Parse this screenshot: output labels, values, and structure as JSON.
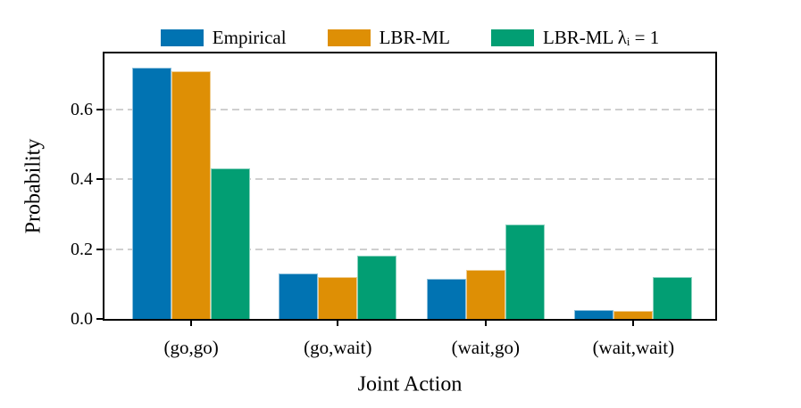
{
  "chart_data": {
    "type": "bar",
    "title": "",
    "categories": [
      "(go,go)",
      "(go,wait)",
      "(wait,go)",
      "(wait,wait)"
    ],
    "series": [
      {
        "name": "Empirical",
        "color": "#0173B2",
        "values": [
          0.72,
          0.13,
          0.115,
          0.025
        ]
      },
      {
        "name": "LBR-ML",
        "color": "#DE8F05",
        "values": [
          0.71,
          0.12,
          0.14,
          0.022
        ]
      },
      {
        "name": "LBR-ML λᵢ = 1",
        "color": "#029E73",
        "values": [
          0.43,
          0.18,
          0.27,
          0.12
        ]
      }
    ],
    "xlabel": "Joint Action",
    "ylabel": "Probability",
    "ylim": [
      0,
      0.76
    ],
    "yticks": [
      {
        "value": 0.0,
        "label": "0.0"
      },
      {
        "value": 0.2,
        "label": "0.2"
      },
      {
        "value": 0.4,
        "label": "0.4"
      },
      {
        "value": 0.6,
        "label": "0.6"
      }
    ],
    "grid": "horizontal-dashed",
    "grid_color": "#cfcfcf",
    "legend_position": "top-center",
    "frame_color": "#000000",
    "background_color": "#ffffff"
  }
}
